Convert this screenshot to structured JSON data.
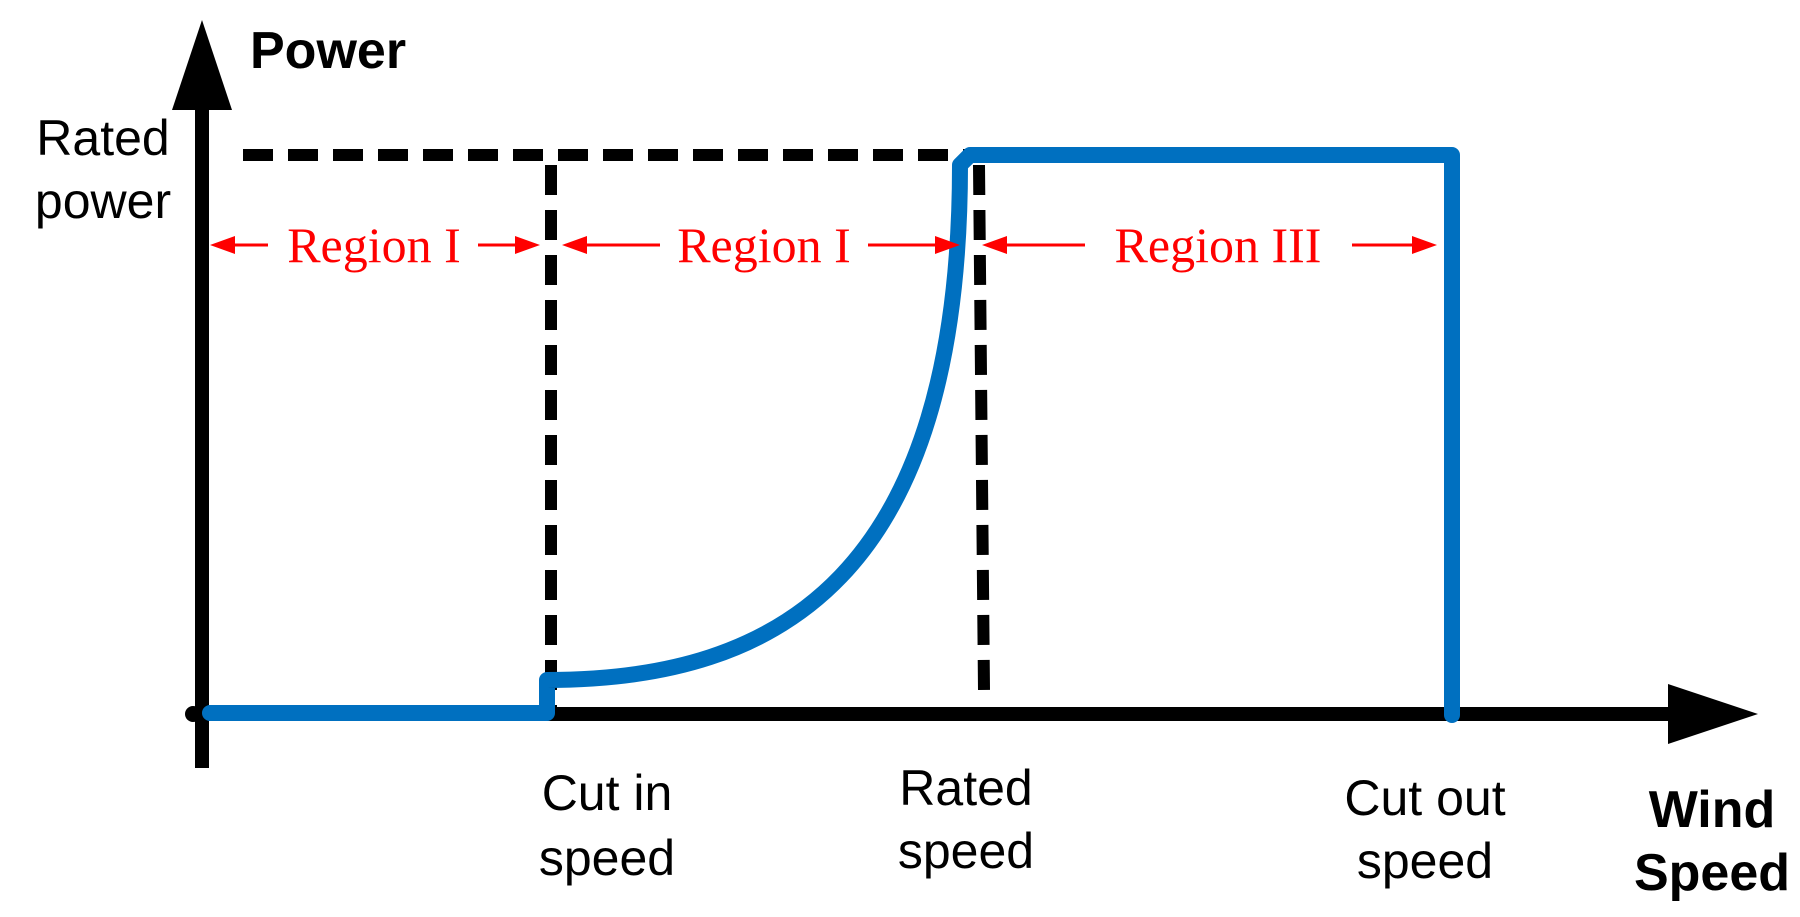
{
  "axes": {
    "y_title": "Power",
    "x_title_line1": "Wind",
    "x_title_line2": "Speed",
    "rated_power_line1": "Rated",
    "rated_power_line2": "power"
  },
  "speeds": {
    "cut_in_line1": "Cut in",
    "cut_in_line2": "speed",
    "rated_line1": "Rated",
    "rated_line2": "speed",
    "cut_out_line1": "Cut out",
    "cut_out_line2": "speed"
  },
  "regions": [
    {
      "label": "Region I"
    },
    {
      "label": "Region I"
    },
    {
      "label": "Region III"
    }
  ],
  "colors": {
    "power_curve": "#0070c0",
    "region_annotation": "#ff0000",
    "axes": "#000000",
    "guides": "#000000"
  }
}
